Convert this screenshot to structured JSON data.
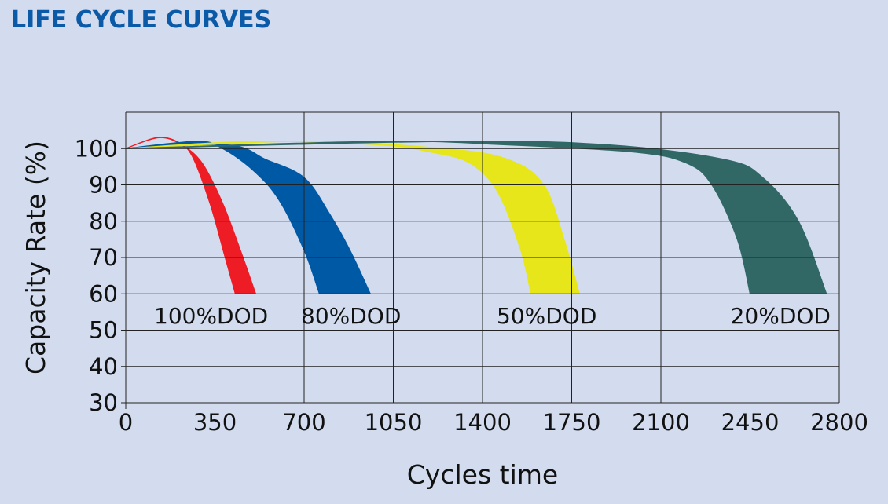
{
  "title": "LIFE CYCLE CURVES",
  "chart_data": {
    "type": "area",
    "xlabel": "Cycles time",
    "ylabel": "Capacity Rate (%)",
    "xlim": [
      0,
      2800
    ],
    "ylim": [
      30,
      110
    ],
    "x_ticks": [
      "0",
      "350",
      "700",
      "1050",
      "1400",
      "1750",
      "2100",
      "2450",
      "2800"
    ],
    "y_ticks": [
      "30",
      "40",
      "50",
      "60",
      "70",
      "80",
      "90",
      "100"
    ],
    "grid": true,
    "series": [
      {
        "name": "100%DOD",
        "color": "#ee1c25",
        "lower": [
          [
            0,
            100
          ],
          [
            120,
            103
          ],
          [
            200,
            102
          ],
          [
            260,
            98
          ],
          [
            330,
            85
          ],
          [
            390,
            70
          ],
          [
            430,
            60
          ]
        ],
        "upper": [
          [
            0,
            100
          ],
          [
            130,
            103
          ],
          [
            220,
            101
          ],
          [
            300,
            96
          ],
          [
            380,
            85
          ],
          [
            450,
            72
          ],
          [
            510,
            60
          ]
        ]
      },
      {
        "name": "80%DOD",
        "color": "#0059a5",
        "lower": [
          [
            0,
            100
          ],
          [
            280,
            102
          ],
          [
            380,
            100
          ],
          [
            500,
            94
          ],
          [
            600,
            86
          ],
          [
            700,
            72
          ],
          [
            760,
            60
          ]
        ],
        "upper": [
          [
            0,
            100
          ],
          [
            400,
            101
          ],
          [
            550,
            97
          ],
          [
            700,
            92
          ],
          [
            800,
            82
          ],
          [
            880,
            72
          ],
          [
            960,
            60
          ]
        ]
      },
      {
        "name": "50%DOD",
        "color": "#e6e61a",
        "lower": [
          [
            0,
            100
          ],
          [
            500,
            102
          ],
          [
            1000,
            101
          ],
          [
            1200,
            99
          ],
          [
            1350,
            96
          ],
          [
            1460,
            88
          ],
          [
            1550,
            72
          ],
          [
            1590,
            60
          ]
        ],
        "upper": [
          [
            0,
            100
          ],
          [
            700,
            102
          ],
          [
            1250,
            100
          ],
          [
            1500,
            97
          ],
          [
            1640,
            90
          ],
          [
            1720,
            75
          ],
          [
            1780,
            60
          ]
        ]
      },
      {
        "name": "20%DOD",
        "color": "#316866",
        "lower": [
          [
            0,
            100
          ],
          [
            1000,
            102
          ],
          [
            1500,
            101
          ],
          [
            2000,
            99
          ],
          [
            2200,
            96
          ],
          [
            2300,
            90
          ],
          [
            2400,
            75
          ],
          [
            2450,
            60
          ]
        ],
        "upper": [
          [
            0,
            100
          ],
          [
            1300,
            102
          ],
          [
            1900,
            101
          ],
          [
            2350,
            97
          ],
          [
            2500,
            92
          ],
          [
            2640,
            80
          ],
          [
            2750,
            60
          ]
        ]
      }
    ],
    "band_bottom_value": 60
  }
}
